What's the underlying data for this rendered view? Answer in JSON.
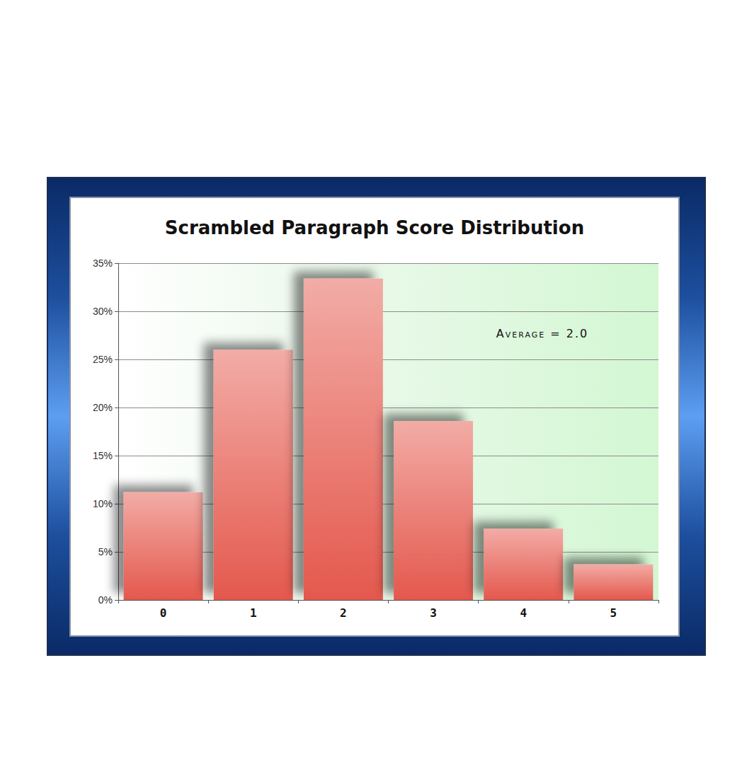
{
  "chart_data": {
    "type": "bar",
    "title": "Scrambled Paragraph Score Distribution",
    "categories": [
      "0",
      "1",
      "2",
      "3",
      "4",
      "5"
    ],
    "values": [
      11.2,
      26,
      33.4,
      18.6,
      7.4,
      3.7
    ],
    "color": "#e4584d",
    "ylim": [
      0,
      35
    ],
    "yticks": [
      {
        "value": 0,
        "label": "0%"
      },
      {
        "value": 5,
        "label": "5%"
      },
      {
        "value": 10,
        "label": "10%"
      },
      {
        "value": 15,
        "label": "15%"
      },
      {
        "value": 20,
        "label": "20%"
      },
      {
        "value": 25,
        "label": "25%"
      },
      {
        "value": 30,
        "label": "30%"
      },
      {
        "value": 35,
        "label": "35%"
      }
    ],
    "grid": true,
    "annotations": [
      "Average = 2.0"
    ]
  }
}
